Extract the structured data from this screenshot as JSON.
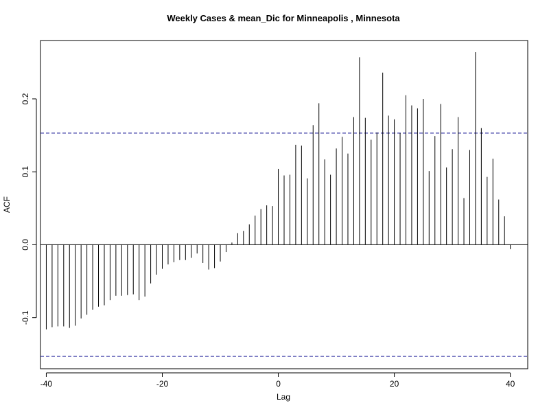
{
  "chart_data": {
    "type": "bar",
    "title": "Weekly Cases & mean_Dic for Minneapolis , Minnesota",
    "xlabel": "Lag",
    "ylabel": "ACF",
    "xlim": [
      -41,
      43
    ],
    "ylim": [
      -0.17,
      0.28
    ],
    "x_ticks": [
      -40,
      -20,
      0,
      20,
      40
    ],
    "x_tick_labels": [
      "-40",
      "-20",
      "0",
      "20",
      "40"
    ],
    "y_ticks": [
      -0.1,
      0.0,
      0.1,
      0.2
    ],
    "y_tick_labels": [
      "-0.1",
      "0.0",
      "0.1",
      "0.2"
    ],
    "confidence_bound": 0.153,
    "confidence_line_color": "#00008b",
    "bar_color": "#000000",
    "grid": false,
    "lags": [
      -40,
      -39,
      -38,
      -37,
      -36,
      -35,
      -34,
      -33,
      -32,
      -31,
      -30,
      -29,
      -28,
      -27,
      -26,
      -25,
      -24,
      -23,
      -22,
      -21,
      -20,
      -19,
      -18,
      -17,
      -16,
      -15,
      -14,
      -13,
      -12,
      -11,
      -10,
      -9,
      -8,
      -7,
      -6,
      -5,
      -4,
      -3,
      -2,
      -1,
      0,
      1,
      2,
      3,
      4,
      5,
      6,
      7,
      8,
      9,
      10,
      11,
      12,
      13,
      14,
      15,
      16,
      17,
      18,
      19,
      20,
      21,
      22,
      23,
      24,
      25,
      26,
      27,
      28,
      29,
      30,
      31,
      32,
      33,
      34,
      35,
      36,
      37,
      38,
      39,
      40
    ],
    "values": [
      -0.116,
      -0.113,
      -0.112,
      -0.112,
      -0.114,
      -0.111,
      -0.101,
      -0.096,
      -0.089,
      -0.085,
      -0.083,
      -0.076,
      -0.07,
      -0.07,
      -0.069,
      -0.068,
      -0.076,
      -0.071,
      -0.053,
      -0.041,
      -0.033,
      -0.027,
      -0.024,
      -0.021,
      -0.021,
      -0.018,
      -0.012,
      -0.025,
      -0.034,
      -0.032,
      -0.023,
      -0.01,
      0.003,
      0.016,
      0.019,
      0.028,
      0.04,
      0.049,
      0.054,
      0.053,
      0.104,
      0.095,
      0.096,
      0.137,
      0.136,
      0.091,
      0.164,
      0.194,
      0.117,
      0.096,
      0.132,
      0.148,
      0.125,
      0.175,
      0.257,
      0.174,
      0.144,
      0.154,
      0.236,
      0.177,
      0.172,
      0.153,
      0.205,
      0.191,
      0.187,
      0.2,
      0.101,
      0.149,
      0.193,
      0.106,
      0.131,
      0.175,
      0.064,
      0.13,
      0.264,
      0.16,
      0.093,
      0.118,
      0.062,
      0.039,
      -0.006
    ]
  }
}
